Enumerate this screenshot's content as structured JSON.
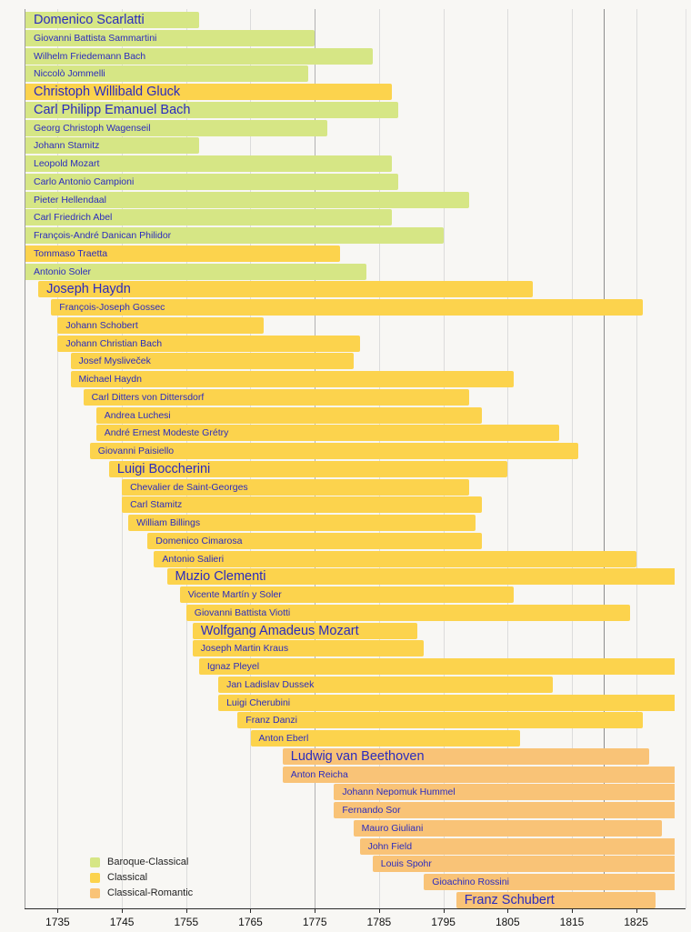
{
  "page": {
    "background": "#f8f7f4",
    "title": "Timeline of Classical era composers"
  },
  "chart_data": {
    "type": "bar",
    "subtype": "horizontal-lifespan-timeline",
    "title": "",
    "xlabel": "",
    "ylabel": "",
    "x_axis": {
      "min_year": 1730,
      "max_year": 1833,
      "tick_years": [
        1735,
        1745,
        1755,
        1765,
        1775,
        1785,
        1795,
        1805,
        1815,
        1825
      ],
      "extra_dark_gridline_year": 1820,
      "grid": "on"
    },
    "legend_position": "bottom-left",
    "legend": [
      {
        "key": "baroque_classical",
        "label": "Baroque-Classical",
        "color": "#d6e685"
      },
      {
        "key": "classical",
        "label": "Classical",
        "color": "#fcd34d"
      },
      {
        "key": "classical_romantic",
        "label": "Classical-Romantic",
        "color": "#f9c377"
      }
    ],
    "label_color": "#2b2bbd",
    "composers": [
      {
        "name": "Domenico Scarlatti",
        "start": 1730,
        "end": 1757,
        "era": "baroque_classical",
        "big": true,
        "start_clipped": true
      },
      {
        "name": "Giovanni Battista Sammartini",
        "start": 1730,
        "end": 1775,
        "era": "baroque_classical",
        "start_clipped": true
      },
      {
        "name": "Wilhelm Friedemann Bach",
        "start": 1730,
        "end": 1784,
        "era": "baroque_classical",
        "start_clipped": true
      },
      {
        "name": "Niccolò Jommelli",
        "start": 1730,
        "end": 1774,
        "era": "baroque_classical",
        "start_clipped": true
      },
      {
        "name": "Christoph Willibald Gluck",
        "start": 1730,
        "end": 1787,
        "era": "classical",
        "big": true,
        "start_clipped": true
      },
      {
        "name": "Carl Philipp Emanuel Bach",
        "start": 1730,
        "end": 1788,
        "era": "baroque_classical",
        "big": true,
        "start_clipped": true
      },
      {
        "name": "Georg Christoph Wagenseil",
        "start": 1730,
        "end": 1777,
        "era": "baroque_classical",
        "start_clipped": true
      },
      {
        "name": "Johann Stamitz",
        "start": 1730,
        "end": 1757,
        "era": "baroque_classical",
        "start_clipped": true
      },
      {
        "name": "Leopold Mozart",
        "start": 1730,
        "end": 1787,
        "era": "baroque_classical",
        "start_clipped": true
      },
      {
        "name": "Carlo Antonio Campioni",
        "start": 1730,
        "end": 1788,
        "era": "baroque_classical",
        "start_clipped": true
      },
      {
        "name": "Pieter Hellendaal",
        "start": 1730,
        "end": 1799,
        "era": "baroque_classical",
        "start_clipped": true
      },
      {
        "name": "Carl Friedrich Abel",
        "start": 1730,
        "end": 1787,
        "era": "baroque_classical",
        "start_clipped": true
      },
      {
        "name": "François-André Danican Philidor",
        "start": 1730,
        "end": 1795,
        "era": "baroque_classical",
        "start_clipped": true
      },
      {
        "name": "Tommaso Traetta",
        "start": 1730,
        "end": 1779,
        "era": "classical",
        "start_clipped": true
      },
      {
        "name": "Antonio Soler",
        "start": 1730,
        "end": 1783,
        "era": "baroque_classical",
        "start_clipped": true
      },
      {
        "name": "Joseph Haydn",
        "start": 1732,
        "end": 1809,
        "era": "classical",
        "big": true
      },
      {
        "name": "François-Joseph Gossec",
        "start": 1734,
        "end": 1826,
        "era": "classical"
      },
      {
        "name": "Johann Schobert",
        "start": 1735,
        "end": 1767,
        "era": "classical"
      },
      {
        "name": "Johann Christian Bach",
        "start": 1735,
        "end": 1782,
        "era": "classical"
      },
      {
        "name": "Josef Mysliveček",
        "start": 1737,
        "end": 1781,
        "era": "classical"
      },
      {
        "name": "Michael Haydn",
        "start": 1737,
        "end": 1806,
        "era": "classical"
      },
      {
        "name": "Carl Ditters von Dittersdorf",
        "start": 1739,
        "end": 1799,
        "era": "classical"
      },
      {
        "name": "Andrea Luchesi",
        "start": 1741,
        "end": 1801,
        "era": "classical"
      },
      {
        "name": "André Ernest Modeste Grétry",
        "start": 1741,
        "end": 1813,
        "era": "classical"
      },
      {
        "name": "Giovanni Paisiello",
        "start": 1740,
        "end": 1816,
        "era": "classical"
      },
      {
        "name": "Luigi Boccherini",
        "start": 1743,
        "end": 1805,
        "era": "classical",
        "big": true
      },
      {
        "name": "Chevalier de Saint-Georges",
        "start": 1745,
        "end": 1799,
        "era": "classical"
      },
      {
        "name": "Carl Stamitz",
        "start": 1745,
        "end": 1801,
        "era": "classical"
      },
      {
        "name": "William Billings",
        "start": 1746,
        "end": 1800,
        "era": "classical"
      },
      {
        "name": "Domenico Cimarosa",
        "start": 1749,
        "end": 1801,
        "era": "classical"
      },
      {
        "name": "Antonio Salieri",
        "start": 1750,
        "end": 1825,
        "era": "classical"
      },
      {
        "name": "Muzio Clementi",
        "start": 1752,
        "end": 1831,
        "era": "classical",
        "big": true,
        "end_clipped": true
      },
      {
        "name": "Vicente Martín y Soler",
        "start": 1754,
        "end": 1806,
        "era": "classical"
      },
      {
        "name": "Giovanni Battista Viotti",
        "start": 1755,
        "end": 1824,
        "era": "classical"
      },
      {
        "name": "Wolfgang Amadeus Mozart",
        "start": 1756,
        "end": 1791,
        "era": "classical",
        "big": true
      },
      {
        "name": "Joseph Martin Kraus",
        "start": 1756,
        "end": 1792,
        "era": "classical"
      },
      {
        "name": "Ignaz Pleyel",
        "start": 1757,
        "end": 1831,
        "era": "classical",
        "end_clipped": true
      },
      {
        "name": "Jan Ladislav Dussek",
        "start": 1760,
        "end": 1812,
        "era": "classical"
      },
      {
        "name": "Luigi Cherubini",
        "start": 1760,
        "end": 1831,
        "era": "classical",
        "end_clipped": true
      },
      {
        "name": "Franz Danzi",
        "start": 1763,
        "end": 1826,
        "era": "classical"
      },
      {
        "name": "Anton Eberl",
        "start": 1765,
        "end": 1807,
        "era": "classical"
      },
      {
        "name": "Ludwig van Beethoven",
        "start": 1770,
        "end": 1827,
        "era": "classical_romantic",
        "big": true
      },
      {
        "name": "Anton Reicha",
        "start": 1770,
        "end": 1831,
        "era": "classical_romantic",
        "end_clipped": true
      },
      {
        "name": "Johann Nepomuk Hummel",
        "start": 1778,
        "end": 1831,
        "era": "classical_romantic",
        "end_clipped": true
      },
      {
        "name": "Fernando Sor",
        "start": 1778,
        "end": 1831,
        "era": "classical_romantic",
        "end_clipped": true
      },
      {
        "name": "Mauro Giuliani",
        "start": 1781,
        "end": 1829,
        "era": "classical_romantic"
      },
      {
        "name": "John Field",
        "start": 1782,
        "end": 1831,
        "era": "classical_romantic",
        "end_clipped": true
      },
      {
        "name": "Louis Spohr",
        "start": 1784,
        "end": 1831,
        "era": "classical_romantic",
        "end_clipped": true
      },
      {
        "name": "Gioachino Rossini",
        "start": 1792,
        "end": 1831,
        "era": "classical_romantic",
        "end_clipped": true
      },
      {
        "name": "Franz Schubert",
        "start": 1797,
        "end": 1828,
        "era": "classical_romantic",
        "big": true
      }
    ]
  }
}
